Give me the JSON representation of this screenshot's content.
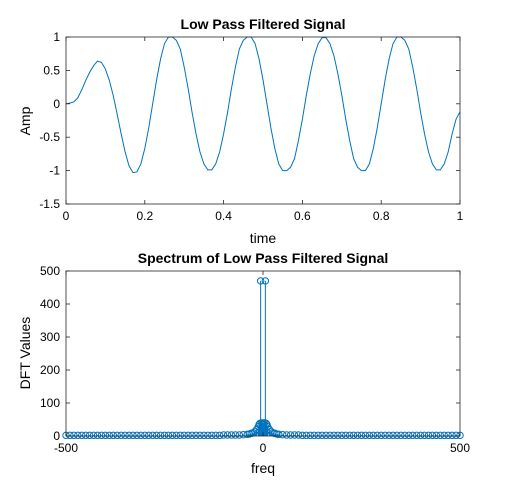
{
  "colors": {
    "series": "#0072BD",
    "axes": "#262626",
    "background": "#ffffff"
  },
  "chart_data": [
    {
      "type": "line",
      "title": "Low Pass Filtered Signal",
      "xlabel": "time",
      "ylabel": "Amp",
      "xlim": [
        0,
        1
      ],
      "ylim": [
        -1.5,
        1
      ],
      "xticks": [
        0,
        0.2,
        0.4,
        0.6,
        0.8,
        1
      ],
      "xtick_labels": [
        "0",
        "0.2",
        "0.4",
        "0.6",
        "0.8",
        "1"
      ],
      "yticks": [
        -1.5,
        -1,
        -0.5,
        0,
        0.5,
        1
      ],
      "ytick_labels": [
        "-1.5",
        "-1",
        "-0.5",
        "0",
        "0.5",
        "1"
      ],
      "grid": false,
      "series": [
        {
          "x": [
            0,
            0.01,
            0.02,
            0.03,
            0.04,
            0.05,
            0.06,
            0.07,
            0.08,
            0.09,
            0.1,
            0.11,
            0.12,
            0.13,
            0.14,
            0.15,
            0.16,
            0.17,
            0.18,
            0.19,
            0.2,
            0.21,
            0.22,
            0.23,
            0.24,
            0.25,
            0.26,
            0.27,
            0.28,
            0.29,
            0.3,
            0.31,
            0.32,
            0.33,
            0.34,
            0.35,
            0.36,
            0.37,
            0.38,
            0.39,
            0.4,
            0.41,
            0.42,
            0.43,
            0.44,
            0.45,
            0.46,
            0.47,
            0.48,
            0.49,
            0.5,
            0.51,
            0.52,
            0.53,
            0.54,
            0.55,
            0.56,
            0.57,
            0.58,
            0.59,
            0.6,
            0.61,
            0.62,
            0.63,
            0.64,
            0.65,
            0.66,
            0.67,
            0.68,
            0.69,
            0.7,
            0.71,
            0.72,
            0.73,
            0.74,
            0.75,
            0.76,
            0.77,
            0.78,
            0.79,
            0.8,
            0.81,
            0.82,
            0.83,
            0.84,
            0.85,
            0.86,
            0.87,
            0.88,
            0.89,
            0.9,
            0.91,
            0.92,
            0.93,
            0.94,
            0.95,
            0.96,
            0.97,
            0.98,
            0.99,
            1.0
          ],
          "y": [
            0.0,
            0.01,
            0.03,
            0.09,
            0.21,
            0.35,
            0.47,
            0.57,
            0.64,
            0.62,
            0.52,
            0.35,
            0.12,
            -0.16,
            -0.45,
            -0.72,
            -0.93,
            -1.03,
            -1.02,
            -0.9,
            -0.67,
            -0.36,
            0.0,
            0.36,
            0.67,
            0.9,
            1.0,
            1.0,
            0.95,
            0.82,
            0.55,
            0.23,
            -0.13,
            -0.45,
            -0.72,
            -0.9,
            -0.99,
            -0.99,
            -0.9,
            -0.72,
            -0.45,
            -0.13,
            0.23,
            0.55,
            0.82,
            0.95,
            1.0,
            1.0,
            0.9,
            0.67,
            0.36,
            0.0,
            -0.36,
            -0.67,
            -0.9,
            -1.0,
            -1.0,
            -0.95,
            -0.82,
            -0.55,
            -0.23,
            0.13,
            0.45,
            0.72,
            0.9,
            0.99,
            0.99,
            0.9,
            0.72,
            0.45,
            0.13,
            -0.23,
            -0.55,
            -0.82,
            -0.95,
            -1.0,
            -1.0,
            -0.9,
            -0.67,
            -0.36,
            0.0,
            0.36,
            0.67,
            0.9,
            1.0,
            1.0,
            0.95,
            0.82,
            0.55,
            0.23,
            -0.13,
            -0.45,
            -0.72,
            -0.9,
            -0.99,
            -0.99,
            -0.9,
            -0.72,
            -0.45,
            -0.23,
            -0.12
          ]
        }
      ]
    },
    {
      "type": "stem",
      "title": "Spectrum of Low Pass Filtered Signal",
      "xlabel": "freq",
      "ylabel": "DFT Values",
      "xlim": [
        -500,
        500
      ],
      "ylim": [
        0,
        500
      ],
      "xticks": [
        -500,
        0,
        500
      ],
      "xtick_labels": [
        "-500",
        "0",
        "500"
      ],
      "yticks": [
        0,
        100,
        200,
        300,
        400,
        500
      ],
      "ytick_labels": [
        "0",
        "100",
        "200",
        "300",
        "400",
        "500"
      ],
      "grid": false,
      "series": [
        {
          "x": [
            -500,
            -490,
            -480,
            -470,
            -460,
            -450,
            -440,
            -430,
            -420,
            -410,
            -400,
            -390,
            -380,
            -370,
            -360,
            -350,
            -340,
            -330,
            -320,
            -310,
            -300,
            -290,
            -280,
            -270,
            -260,
            -250,
            -240,
            -230,
            -220,
            -210,
            -200,
            -190,
            -180,
            -170,
            -160,
            -150,
            -140,
            -130,
            -120,
            -110,
            -100,
            -90,
            -80,
            -70,
            -60,
            -50,
            -40,
            -35,
            -30,
            -25,
            -20,
            -16,
            -12,
            -10,
            -8,
            -6,
            -4,
            -2,
            0,
            2,
            4,
            6,
            8,
            10,
            12,
            16,
            20,
            25,
            30,
            35,
            40,
            50,
            60,
            70,
            80,
            90,
            100,
            110,
            120,
            130,
            140,
            150,
            160,
            170,
            180,
            190,
            200,
            210,
            220,
            230,
            240,
            250,
            260,
            270,
            280,
            290,
            300,
            310,
            320,
            330,
            340,
            350,
            360,
            370,
            380,
            390,
            400,
            410,
            420,
            430,
            440,
            450,
            460,
            470,
            480,
            490,
            500
          ],
          "y": [
            2,
            2,
            2,
            2,
            2,
            2,
            2,
            2,
            2,
            2,
            2,
            2,
            2,
            2,
            2,
            2,
            2,
            2,
            2,
            2,
            2,
            2,
            2,
            2,
            2,
            2,
            2,
            2,
            2,
            2,
            2,
            2,
            2,
            2,
            2,
            2,
            2,
            2,
            2,
            2,
            3,
            3,
            3,
            3,
            3,
            4,
            5,
            6,
            8,
            10,
            14,
            20,
            28,
            35,
            38,
            470,
            40,
            36,
            35,
            36,
            40,
            470,
            38,
            35,
            28,
            20,
            14,
            10,
            8,
            6,
            5,
            4,
            3,
            3,
            3,
            3,
            2,
            2,
            2,
            2,
            2,
            2,
            2,
            2,
            2,
            2,
            2,
            2,
            2,
            2,
            2,
            2,
            2,
            2,
            2,
            2,
            2,
            2,
            2,
            2,
            2,
            2,
            2,
            2,
            2,
            2,
            2,
            2,
            2,
            2,
            2,
            2,
            2,
            2,
            2,
            2,
            2
          ]
        }
      ]
    }
  ]
}
